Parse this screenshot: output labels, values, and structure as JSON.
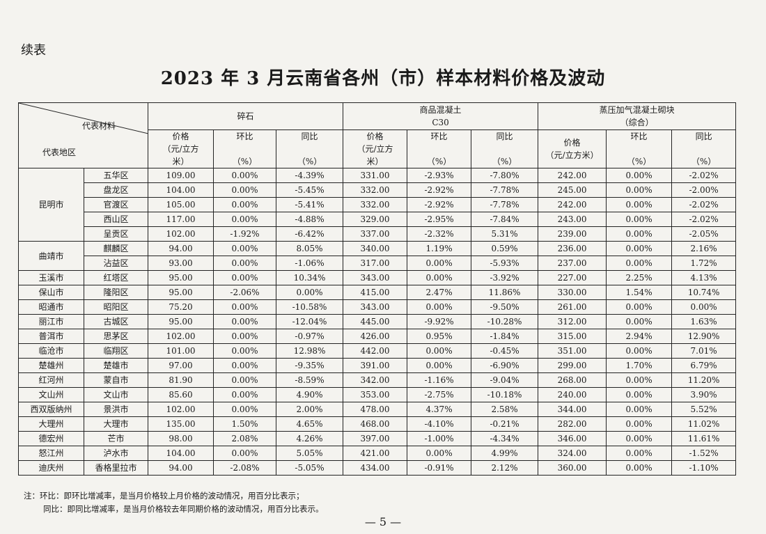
{
  "continued_label": "续表",
  "title": "2023 年 3 月云南省各州（市）样本材料价格及波动",
  "header": {
    "material_label": "代表材料",
    "region_label": "代表地区",
    "groups": [
      {
        "name": "碎石",
        "name2": ""
      },
      {
        "name": "商品混凝土",
        "name2": "C30"
      },
      {
        "name": "蒸压加气混凝土砌块",
        "name2": "（综合）"
      }
    ],
    "price_label_a": "价格",
    "price_label_b": "（元/立方",
    "price_label_c": "米）",
    "price_label_full": "（元/立方米）",
    "mom_label": "环比",
    "yoy_label": "同比",
    "pct_label": "（%）"
  },
  "rows": [
    {
      "city": "昆明市",
      "district": "五华区",
      "v": [
        "109.00",
        "0.00%",
        "-4.39%",
        "331.00",
        "-2.93%",
        "-7.80%",
        "242.00",
        "0.00%",
        "-2.02%"
      ]
    },
    {
      "city": "",
      "district": "盘龙区",
      "v": [
        "104.00",
        "0.00%",
        "-5.45%",
        "332.00",
        "-2.92%",
        "-7.78%",
        "245.00",
        "0.00%",
        "-2.00%"
      ]
    },
    {
      "city": "",
      "district": "官渡区",
      "v": [
        "105.00",
        "0.00%",
        "-5.41%",
        "332.00",
        "-2.92%",
        "-7.78%",
        "242.00",
        "0.00%",
        "-2.02%"
      ]
    },
    {
      "city": "",
      "district": "西山区",
      "v": [
        "117.00",
        "0.00%",
        "-4.88%",
        "329.00",
        "-2.95%",
        "-7.84%",
        "243.00",
        "0.00%",
        "-2.02%"
      ]
    },
    {
      "city": "",
      "district": "呈贡区",
      "v": [
        "102.00",
        "-1.92%",
        "-6.42%",
        "337.00",
        "-2.32%",
        "5.31%",
        "239.00",
        "0.00%",
        "-2.05%"
      ]
    },
    {
      "city": "曲靖市",
      "district": "麒麟区",
      "v": [
        "94.00",
        "0.00%",
        "8.05%",
        "340.00",
        "1.19%",
        "0.59%",
        "236.00",
        "0.00%",
        "2.16%"
      ]
    },
    {
      "city": "",
      "district": "沾益区",
      "v": [
        "93.00",
        "0.00%",
        "-1.06%",
        "317.00",
        "0.00%",
        "-5.93%",
        "237.00",
        "0.00%",
        "1.72%"
      ]
    },
    {
      "city": "玉溪市",
      "district": "红塔区",
      "v": [
        "95.00",
        "0.00%",
        "10.34%",
        "343.00",
        "0.00%",
        "-3.92%",
        "227.00",
        "2.25%",
        "4.13%"
      ]
    },
    {
      "city": "保山市",
      "district": "隆阳区",
      "v": [
        "95.00",
        "-2.06%",
        "0.00%",
        "415.00",
        "2.47%",
        "11.86%",
        "330.00",
        "1.54%",
        "10.74%"
      ]
    },
    {
      "city": "昭通市",
      "district": "昭阳区",
      "v": [
        "75.20",
        "0.00%",
        "-10.58%",
        "343.00",
        "0.00%",
        "-9.50%",
        "261.00",
        "0.00%",
        "0.00%"
      ]
    },
    {
      "city": "丽江市",
      "district": "古城区",
      "v": [
        "95.00",
        "0.00%",
        "-12.04%",
        "445.00",
        "-9.92%",
        "-10.28%",
        "312.00",
        "0.00%",
        "1.63%"
      ]
    },
    {
      "city": "普洱市",
      "district": "思茅区",
      "v": [
        "102.00",
        "0.00%",
        "-0.97%",
        "426.00",
        "0.95%",
        "-1.84%",
        "315.00",
        "2.94%",
        "12.90%"
      ]
    },
    {
      "city": "临沧市",
      "district": "临翔区",
      "v": [
        "101.00",
        "0.00%",
        "12.98%",
        "442.00",
        "0.00%",
        "-0.45%",
        "351.00",
        "0.00%",
        "7.01%"
      ]
    },
    {
      "city": "楚雄州",
      "district": "楚雄市",
      "v": [
        "97.00",
        "0.00%",
        "-9.35%",
        "391.00",
        "0.00%",
        "-6.90%",
        "299.00",
        "1.70%",
        "6.79%"
      ]
    },
    {
      "city": "红河州",
      "district": "蒙自市",
      "v": [
        "81.90",
        "0.00%",
        "-8.59%",
        "342.00",
        "-1.16%",
        "-9.04%",
        "268.00",
        "0.00%",
        "11.20%"
      ]
    },
    {
      "city": "文山州",
      "district": "文山市",
      "v": [
        "85.60",
        "0.00%",
        "4.90%",
        "353.00",
        "-2.75%",
        "-10.18%",
        "240.00",
        "0.00%",
        "3.90%"
      ]
    },
    {
      "city": "西双版纳州",
      "district": "景洪市",
      "v": [
        "102.00",
        "0.00%",
        "2.00%",
        "478.00",
        "4.37%",
        "2.58%",
        "344.00",
        "0.00%",
        "5.52%"
      ]
    },
    {
      "city": "大理州",
      "district": "大理市",
      "v": [
        "135.00",
        "1.50%",
        "4.65%",
        "468.00",
        "-4.10%",
        "-0.21%",
        "282.00",
        "0.00%",
        "11.02%"
      ]
    },
    {
      "city": "德宏州",
      "district": "芒市",
      "v": [
        "98.00",
        "2.08%",
        "4.26%",
        "397.00",
        "-1.00%",
        "-4.34%",
        "346.00",
        "0.00%",
        "11.61%"
      ]
    },
    {
      "city": "怒江州",
      "district": "泸水市",
      "v": [
        "104.00",
        "0.00%",
        "5.05%",
        "421.00",
        "0.00%",
        "4.99%",
        "324.00",
        "0.00%",
        "-1.52%"
      ]
    },
    {
      "city": "迪庆州",
      "district": "香格里拉市",
      "v": [
        "94.00",
        "-2.08%",
        "-5.05%",
        "434.00",
        "-0.91%",
        "2.12%",
        "360.00",
        "0.00%",
        "-1.10%"
      ]
    }
  ],
  "notes": {
    "line1": "注：环比：即环比增减率，是当月价格较上月价格的波动情况，用百分比表示；",
    "line2": "同比：即同比增减率，是当月价格较去年同期价格的波动情况，用百分比表示。"
  },
  "page_number": "— 5 —"
}
